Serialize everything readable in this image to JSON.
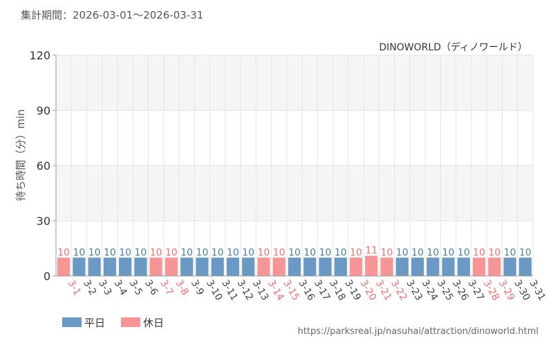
{
  "header": {
    "period_label": "集計期間：2026-03-01～2026-03-31"
  },
  "footer": {
    "url": "https://parksreal.jp/nasuhai/attraction/dinoworld.html"
  },
  "legend": [
    {
      "label": "平日",
      "color": "#6a99c4"
    },
    {
      "label": "休日",
      "color": "#f69596"
    }
  ],
  "colors": {
    "weekday": "#6a99c4",
    "holiday": "#f69596",
    "weekday_label": "#4a7ba8",
    "holiday_label": "#f07070"
  },
  "chart_data": {
    "type": "bar",
    "title": "DINOWORLD（ディノワールド）",
    "ylabel": "待ち時間（分）min",
    "xlabel": "",
    "ylim": [
      0,
      120
    ],
    "yticks": [
      0,
      30,
      60,
      90,
      120
    ],
    "grid": true,
    "legend_position": "bottom-left",
    "categories": [
      "3-1",
      "3-2",
      "3-3",
      "3-4",
      "3-5",
      "3-6",
      "3-7",
      "3-8",
      "3-9",
      "3-10",
      "3-11",
      "3-12",
      "3-13",
      "3-14",
      "3-15",
      "3-16",
      "3-17",
      "3-18",
      "3-19",
      "3-20",
      "3-21",
      "3-22",
      "3-23",
      "3-24",
      "3-25",
      "3-26",
      "3-27",
      "3-28",
      "3-29",
      "3-30",
      "3-31"
    ],
    "values": [
      10,
      10,
      10,
      10,
      10,
      10,
      10,
      10,
      10,
      10,
      10,
      10,
      10,
      10,
      10,
      10,
      10,
      10,
      10,
      10,
      11,
      10,
      10,
      10,
      10,
      10,
      10,
      10,
      10,
      10,
      10
    ],
    "day_types": [
      "holiday",
      "weekday",
      "weekday",
      "weekday",
      "weekday",
      "weekday",
      "holiday",
      "holiday",
      "weekday",
      "weekday",
      "weekday",
      "weekday",
      "weekday",
      "holiday",
      "holiday",
      "weekday",
      "weekday",
      "weekday",
      "weekday",
      "holiday",
      "holiday",
      "holiday",
      "weekday",
      "weekday",
      "weekday",
      "weekday",
      "weekday",
      "holiday",
      "holiday",
      "weekday",
      "weekday"
    ]
  }
}
